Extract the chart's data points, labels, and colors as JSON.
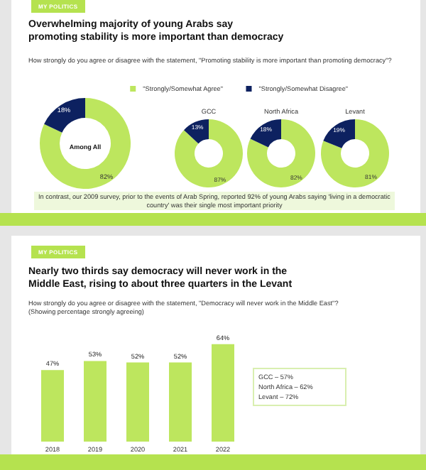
{
  "chart_data": [
    {
      "type": "donut",
      "title": "Overwhelming majority of young Arabs say promoting stability is more important than democracy",
      "subtitle": "How strongly do you agree or disagree with the statement, \"Promoting stability is more important than promoting democracy\"?",
      "categories": [
        "\"Strongly/Somewhat Agree\"",
        "\"Strongly/Somewhat Disagree\""
      ],
      "values": [
        82,
        18
      ],
      "colors": [
        "#bde65e",
        "#0d2160"
      ],
      "value_labels": [
        "82%",
        "18%"
      ],
      "legend": "top right",
      "annotations": [
        "MY POLITICS",
        "Among All",
        "In contrast, our 2009 survey, prior to the events of Arab Spring, reported 92% of young Arabs saying 'living in a democratic country' was their single most important priority"
      ]
    },
    {
      "type": "donut",
      "title": "GCC",
      "values": [
        87,
        13
      ],
      "colors": [
        "#bde65e",
        "#0d2160"
      ],
      "value_labels": [
        "87%",
        "13%"
      ]
    },
    {
      "type": "donut",
      "title": "North Africa",
      "values": [
        82,
        18
      ],
      "colors": [
        "#bde65e",
        "#0d2160"
      ],
      "value_labels": [
        "82%",
        "18%"
      ]
    },
    {
      "type": "donut",
      "title": "Levant",
      "values": [
        81,
        19
      ],
      "colors": [
        "#bde65e",
        "#0d2160"
      ],
      "value_labels": [
        "81%",
        "19%"
      ]
    },
    {
      "type": "bar",
      "title": "Nearly two thirds say democracy will never work in the Middle East, rising to about three quarters in the Levant",
      "subtitle": "How strongly do you agree or disagree with the statement, \"Democracy will never work in the Middle East\"?",
      "categories": [
        "2018",
        "2019",
        "2020",
        "2021",
        "2022"
      ],
      "values": [
        47,
        53,
        52,
        52,
        64
      ],
      "color": "#bde65e",
      "value_labels": [
        "47%",
        "53%",
        "52%",
        "52%",
        "64%"
      ],
      "annotations": [
        "MY POLITICS",
        "(Showing percentage strongly agreeing)",
        "GCC – 57%",
        "North Africa – 62%",
        "Levant – 72%"
      ]
    }
  ]
}
